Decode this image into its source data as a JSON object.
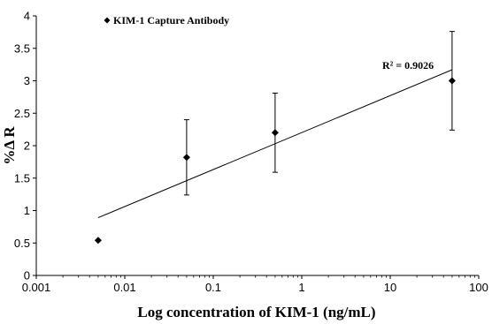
{
  "chart_data": {
    "type": "scatter",
    "xlabel": "Log concentration of KIM-1 (ng/mL)",
    "ylabel": "%Δ R",
    "x_scale": "log",
    "xlim": [
      0.001,
      100
    ],
    "ylim": [
      0,
      4
    ],
    "x_ticks": [
      "0.001",
      "0.01",
      "0.1",
      "1",
      "10",
      "100"
    ],
    "x_tick_values": [
      0.001,
      0.01,
      0.1,
      1,
      10,
      100
    ],
    "y_ticks": [
      "0",
      "0.5",
      "1",
      "1.5",
      "2",
      "2.5",
      "3",
      "3.5",
      "4"
    ],
    "y_tick_values": [
      0,
      0.5,
      1,
      1.5,
      2,
      2.5,
      3,
      3.5,
      4
    ],
    "grid": false,
    "legend_position": "top-left",
    "series": [
      {
        "name": "KIM-1 Capture Antibody",
        "marker": "diamond",
        "color": "#000000",
        "points": [
          {
            "x": 0.005,
            "y": 0.54
          },
          {
            "x": 0.05,
            "y": 1.82,
            "err_low": 1.24,
            "err_high": 2.4
          },
          {
            "x": 0.5,
            "y": 2.2,
            "err_low": 1.59,
            "err_high": 2.81
          },
          {
            "x": 50,
            "y": 3.0,
            "err_low": 2.24,
            "err_high": 3.76
          }
        ]
      }
    ],
    "trendline": {
      "type": "log",
      "start": {
        "x": 0.005,
        "y": 0.89
      },
      "end": {
        "x": 50,
        "y": 3.17
      }
    },
    "annotation": "R² = 0.9026"
  }
}
